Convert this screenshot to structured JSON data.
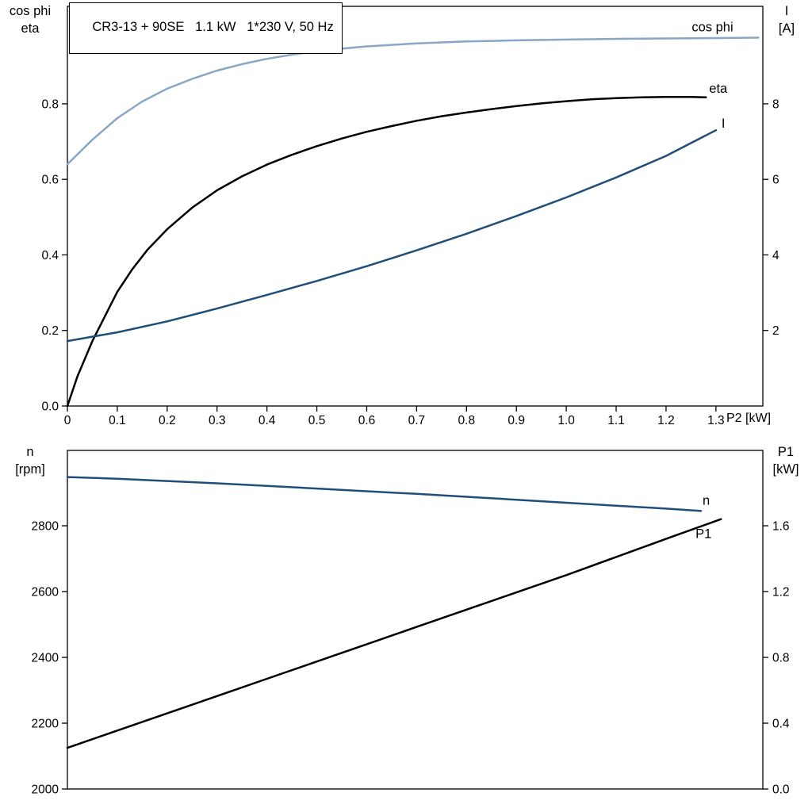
{
  "window": {
    "background": "#ffffff"
  },
  "title_box": {
    "text": "CR3-13 + 90SE   1.1 kW   1*230 V, 50 Hz"
  },
  "axis_corner_labels": {
    "top_left": [
      "cos phi",
      "eta"
    ],
    "top_right": [
      "I",
      "[A]"
    ],
    "bottom_left": [
      "n",
      "[rpm]"
    ],
    "bottom_right": [
      "P1",
      "[kW]"
    ]
  },
  "colors": {
    "black": "#000000",
    "dark_blue": "#1f4e79",
    "light_blue": "#8aa6c5",
    "axis": "#000000",
    "background": "#ffffff"
  },
  "chart_data": [
    {
      "type": "line",
      "name": "motor-performance-chart",
      "title": "CR3-13 + 90SE   1.1 kW   1*230 V, 50 Hz",
      "grid": false,
      "x_axis": {
        "label": "P2 [kW]",
        "range": [
          0,
          1.394
        ],
        "ticks": [
          {
            "v": 0,
            "label": "0"
          },
          {
            "v": 0.1,
            "label": "0.1"
          },
          {
            "v": 0.2,
            "label": "0.2"
          },
          {
            "v": 0.3,
            "label": "0.3"
          },
          {
            "v": 0.4,
            "label": "0.4"
          },
          {
            "v": 0.5,
            "label": "0.5"
          },
          {
            "v": 0.6,
            "label": "0.6"
          },
          {
            "v": 0.7,
            "label": "0.7"
          },
          {
            "v": 0.8,
            "label": "0.8"
          },
          {
            "v": 0.9,
            "label": "0.9"
          },
          {
            "v": 1.0,
            "label": "1.0"
          },
          {
            "v": 1.1,
            "label": "1.1"
          },
          {
            "v": 1.2,
            "label": "1.2"
          },
          {
            "v": 1.3,
            "label": "1.3"
          }
        ]
      },
      "left_axis": {
        "name": "cos phi / eta",
        "range": [
          0,
          1.058
        ],
        "ticks": [
          {
            "v": 0.0,
            "label": "0.0"
          },
          {
            "v": 0.2,
            "label": "0.2"
          },
          {
            "v": 0.4,
            "label": "0.4"
          },
          {
            "v": 0.6,
            "label": "0.6"
          },
          {
            "v": 0.8,
            "label": "0.8"
          }
        ]
      },
      "right_axis": {
        "name": "I [A]",
        "range": [
          0,
          10.58
        ],
        "ticks": [
          {
            "v": 2,
            "label": "2"
          },
          {
            "v": 4,
            "label": "4"
          },
          {
            "v": 6,
            "label": "6"
          },
          {
            "v": 8,
            "label": "8"
          }
        ]
      },
      "series": [
        {
          "name": "cos-phi",
          "label": "cos phi",
          "color": "#8aa6c5",
          "axis": "left",
          "label_offset": [
            -84,
            -8
          ],
          "points": [
            [
              0,
              0.64
            ],
            [
              0.05,
              0.705
            ],
            [
              0.1,
              0.762
            ],
            [
              0.15,
              0.806
            ],
            [
              0.2,
              0.84
            ],
            [
              0.25,
              0.866
            ],
            [
              0.3,
              0.888
            ],
            [
              0.35,
              0.905
            ],
            [
              0.4,
              0.919
            ],
            [
              0.45,
              0.93
            ],
            [
              0.5,
              0.939
            ],
            [
              0.55,
              0.946
            ],
            [
              0.6,
              0.952
            ],
            [
              0.7,
              0.96
            ],
            [
              0.8,
              0.965
            ],
            [
              0.9,
              0.968
            ],
            [
              1,
              0.97
            ],
            [
              1.1,
              0.972
            ],
            [
              1.2,
              0.973
            ],
            [
              1.3,
              0.974
            ],
            [
              1.385,
              0.975
            ]
          ]
        },
        {
          "name": "eta",
          "label": "eta",
          "color": "#000000",
          "axis": "left",
          "label_offset": [
            4,
            -6
          ],
          "points": [
            [
              0,
              0
            ],
            [
              0.02,
              0.078
            ],
            [
              0.05,
              0.172
            ],
            [
              0.08,
              0.25
            ],
            [
              0.1,
              0.302
            ],
            [
              0.13,
              0.362
            ],
            [
              0.16,
              0.413
            ],
            [
              0.2,
              0.468
            ],
            [
              0.25,
              0.525
            ],
            [
              0.3,
              0.571
            ],
            [
              0.35,
              0.608
            ],
            [
              0.4,
              0.639
            ],
            [
              0.45,
              0.665
            ],
            [
              0.5,
              0.688
            ],
            [
              0.55,
              0.708
            ],
            [
              0.6,
              0.726
            ],
            [
              0.65,
              0.741
            ],
            [
              0.7,
              0.755
            ],
            [
              0.75,
              0.767
            ],
            [
              0.8,
              0.777
            ],
            [
              0.85,
              0.786
            ],
            [
              0.9,
              0.794
            ],
            [
              0.95,
              0.801
            ],
            [
              1,
              0.807
            ],
            [
              1.05,
              0.812
            ],
            [
              1.1,
              0.815
            ],
            [
              1.15,
              0.817
            ],
            [
              1.2,
              0.818
            ],
            [
              1.25,
              0.818
            ],
            [
              1.28,
              0.817
            ]
          ]
        },
        {
          "name": "current",
          "label": "I",
          "color": "#1f4e79",
          "axis": "right",
          "label_offset": [
            7,
            -3
          ],
          "points": [
            [
              0,
              1.72
            ],
            [
              0.1,
              1.95
            ],
            [
              0.2,
              2.24
            ],
            [
              0.3,
              2.58
            ],
            [
              0.4,
              2.94
            ],
            [
              0.5,
              3.31
            ],
            [
              0.6,
              3.7
            ],
            [
              0.7,
              4.12
            ],
            [
              0.8,
              4.56
            ],
            [
              0.9,
              5.03
            ],
            [
              1,
              5.52
            ],
            [
              1.1,
              6.05
            ],
            [
              1.2,
              6.62
            ],
            [
              1.3,
              7.3
            ]
          ]
        }
      ]
    },
    {
      "type": "line",
      "name": "speed-power-chart",
      "title": "",
      "grid": false,
      "x_axis": {
        "label": "",
        "range": [
          0,
          1.394
        ],
        "ticks": []
      },
      "left_axis": {
        "name": "n [rpm]",
        "range": [
          2000,
          3029
        ],
        "ticks": [
          {
            "v": 2000,
            "label": "2000"
          },
          {
            "v": 2200,
            "label": "2200"
          },
          {
            "v": 2400,
            "label": "2400"
          },
          {
            "v": 2600,
            "label": "2600"
          },
          {
            "v": 2800,
            "label": "2800"
          }
        ]
      },
      "right_axis": {
        "name": "P1 [kW]",
        "range": [
          0,
          2.058
        ],
        "ticks": [
          {
            "v": 0.0,
            "label": "0.0"
          },
          {
            "v": 0.4,
            "label": "0.4"
          },
          {
            "v": 0.8,
            "label": "0.8"
          },
          {
            "v": 1.2,
            "label": "1.2"
          },
          {
            "v": 1.6,
            "label": "1.6"
          }
        ]
      },
      "series": [
        {
          "name": "speed",
          "label": "n",
          "color": "#1f4e79",
          "axis": "left",
          "label_offset": [
            2,
            -8
          ],
          "points": [
            [
              0,
              2948
            ],
            [
              0.1,
              2943
            ],
            [
              0.2,
              2936
            ],
            [
              0.3,
              2929
            ],
            [
              0.4,
              2921
            ],
            [
              0.5,
              2913
            ],
            [
              0.6,
              2905
            ],
            [
              0.7,
              2897
            ],
            [
              0.8,
              2888
            ],
            [
              0.9,
              2879
            ],
            [
              1,
              2870
            ],
            [
              1.1,
              2861
            ],
            [
              1.2,
              2852
            ],
            [
              1.27,
              2845
            ]
          ]
        },
        {
          "name": "input-power",
          "label": "P1",
          "color": "#000000",
          "axis": "right",
          "label_offset": [
            -32,
            24
          ],
          "points": [
            [
              0,
              0.25
            ],
            [
              0.1,
              0.355
            ],
            [
              0.2,
              0.46
            ],
            [
              0.3,
              0.565
            ],
            [
              0.4,
              0.67
            ],
            [
              0.5,
              0.775
            ],
            [
              0.6,
              0.88
            ],
            [
              0.7,
              0.985
            ],
            [
              0.8,
              1.09
            ],
            [
              0.9,
              1.195
            ],
            [
              1,
              1.3
            ],
            [
              1.1,
              1.41
            ],
            [
              1.2,
              1.52
            ],
            [
              1.31,
              1.64
            ]
          ]
        }
      ]
    }
  ]
}
